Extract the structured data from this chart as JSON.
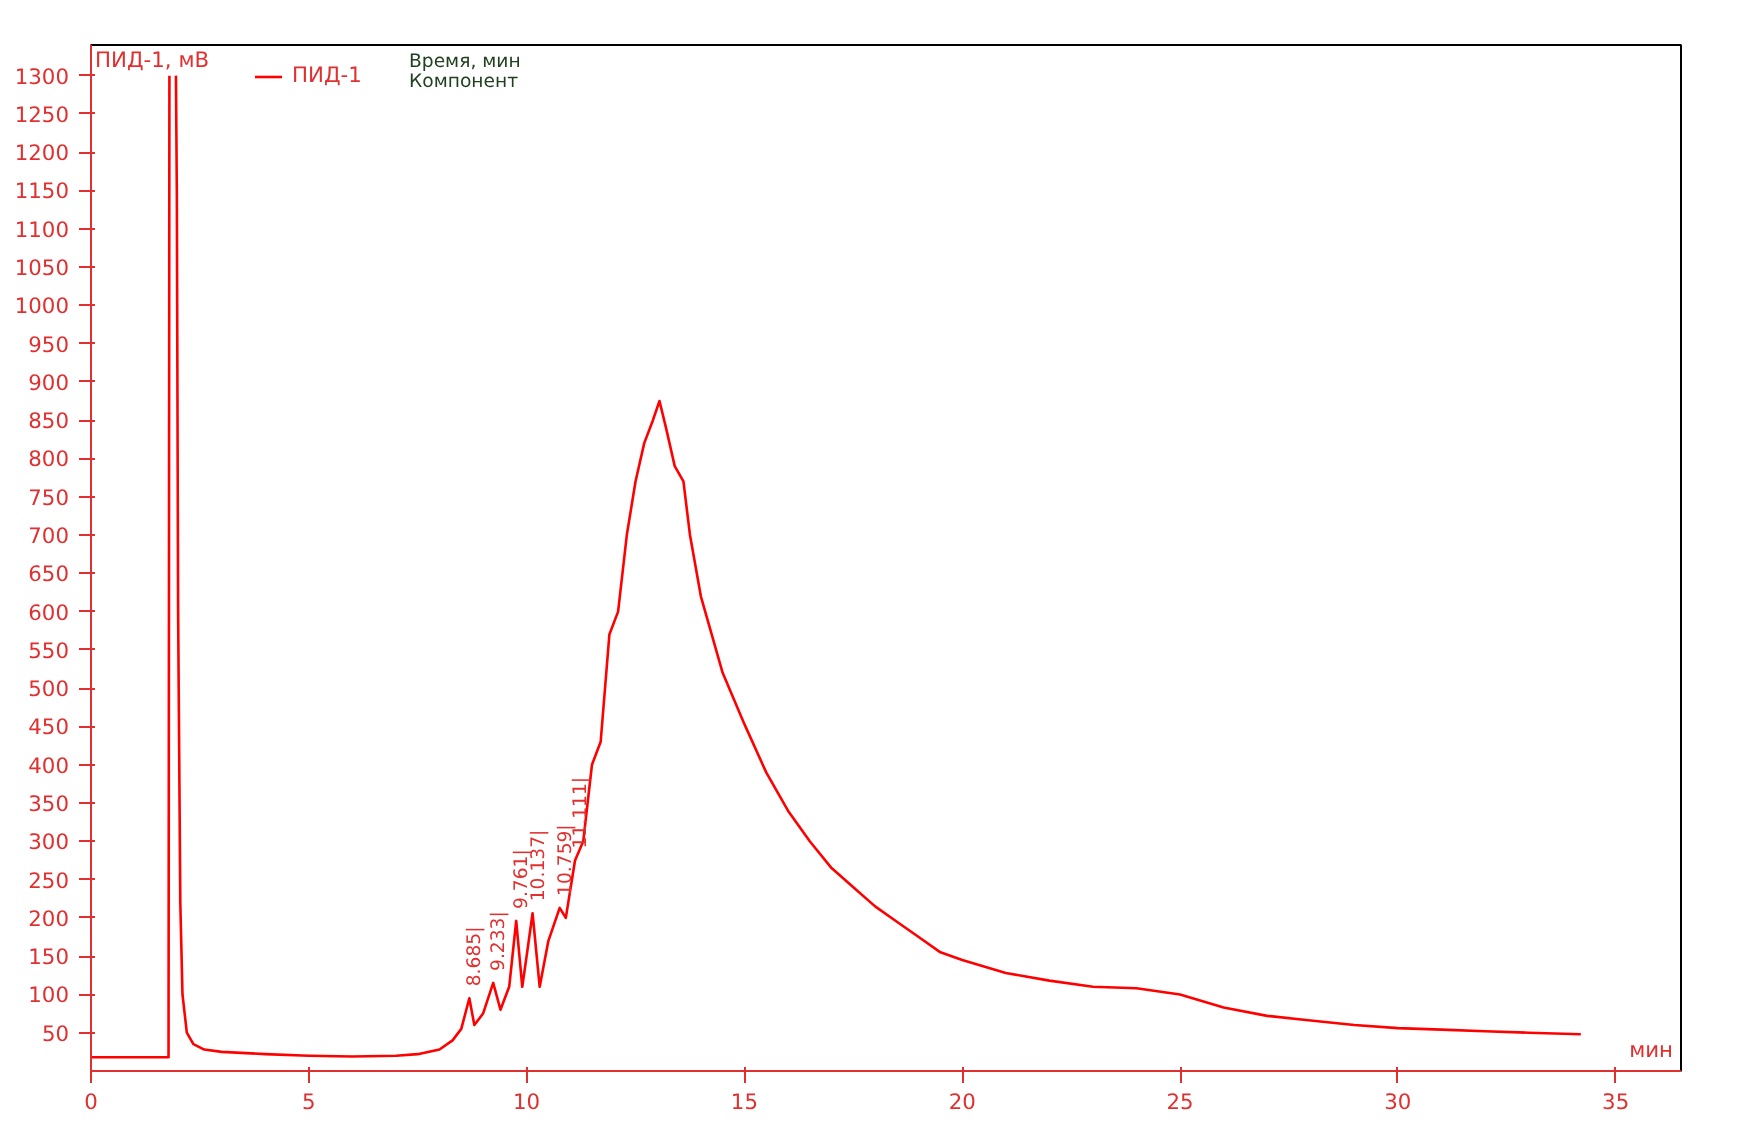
{
  "chart_data": {
    "type": "line",
    "xlabel": "мин",
    "ylabel": "ПИД-1, мВ",
    "xlim": [
      0,
      36.5
    ],
    "ylim": [
      0,
      1340
    ],
    "xticks": [
      0,
      5,
      10,
      15,
      20,
      25,
      30,
      35
    ],
    "yticks": [
      50,
      100,
      150,
      200,
      250,
      300,
      350,
      400,
      450,
      500,
      550,
      600,
      650,
      700,
      750,
      800,
      850,
      900,
      950,
      1000,
      1050,
      1100,
      1150,
      1200,
      1250,
      1300
    ],
    "grid": false,
    "legend": "top left",
    "marker": "none",
    "line_style": "solid",
    "series": [
      {
        "name": "ПИД-1",
        "color": "#ff0000",
        "x": [
          0,
          1.7,
          1.78,
          1.8,
          1.82,
          1.92,
          1.95,
          1.97,
          2.0,
          2.05,
          2.1,
          2.2,
          2.35,
          2.6,
          3,
          4,
          5,
          6,
          7,
          7.5,
          8.0,
          8.3,
          8.5,
          8.685,
          8.8,
          9.0,
          9.233,
          9.4,
          9.6,
          9.761,
          9.9,
          10.0,
          10.137,
          10.3,
          10.5,
          10.759,
          10.9,
          11.111,
          11.3,
          11.5,
          11.7,
          11.9,
          12.1,
          12.3,
          12.5,
          12.7,
          12.9,
          13.05,
          13.2,
          13.4,
          13.6,
          13.75,
          14.0,
          14.5,
          15,
          15.5,
          16,
          16.5,
          17,
          17.5,
          18,
          18.5,
          19,
          19.5,
          20,
          21,
          22,
          23,
          24,
          25,
          26,
          27,
          28,
          29,
          30,
          31,
          32,
          33,
          34.2
        ],
        "values": [
          18,
          18,
          18,
          1300,
          null,
          null,
          1300,
          1150,
          600,
          220,
          100,
          50,
          35,
          28,
          25,
          22,
          20,
          19,
          20,
          22,
          28,
          40,
          55,
          95,
          60,
          75,
          115,
          80,
          110,
          196,
          110,
          150,
          206,
          110,
          170,
          213,
          200,
          275,
          300,
          400,
          430,
          570,
          600,
          700,
          770,
          820,
          850,
          875,
          840,
          790,
          770,
          700,
          620,
          520,
          453,
          390,
          340,
          300,
          265,
          240,
          215,
          195,
          175,
          155,
          145,
          128,
          118,
          110,
          108,
          100,
          83,
          72,
          66,
          60,
          56,
          54,
          52,
          50,
          48
        ]
      }
    ],
    "annotations": [
      "Время, мин",
      "Компонент",
      {
        "text": "8.685|",
        "x": 8.685,
        "y": 95
      },
      {
        "text": "9.233|",
        "x": 9.233,
        "y": 115
      },
      {
        "text": "9.761|",
        "x": 9.761,
        "y": 196
      },
      {
        "text": "10.137|",
        "x": 10.137,
        "y": 206
      },
      {
        "text": "10.759|",
        "x": 10.759,
        "y": 213
      },
      {
        "text": "11.111|",
        "x": 11.111,
        "y": 275
      }
    ]
  }
}
